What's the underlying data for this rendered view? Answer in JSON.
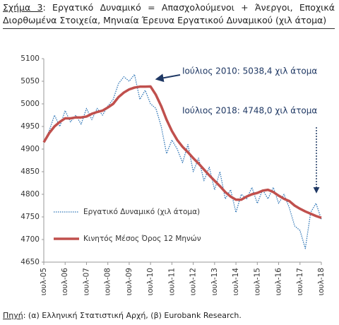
{
  "chart_data": {
    "type": "line",
    "figure_label": "Σχήμα 3",
    "title": ": Εργατικό Δυναμικό = Απασχολούμενοι + Άνεργοι, Εποχικά Διορθωμένα Στοιχεία, Μηνιαία Έρευνα Εργατικού Δυναμικού (χιλ άτομα)",
    "source_label": "Πηγή",
    "source": ": (α) Ελληνική Στατιστική Αρχή, (β) Eurobank Research.",
    "annotations": [
      "Ιούλιος 2010: 5038,4 χιλ άτομα",
      "Ιούλιος 2018: 4748,0 χιλ άτομα"
    ],
    "x": [
      2005.5,
      2005.75,
      2006.0,
      2006.25,
      2006.5,
      2006.75,
      2007.0,
      2007.25,
      2007.5,
      2007.75,
      2008.0,
      2008.25,
      2008.5,
      2008.75,
      2009.0,
      2009.25,
      2009.5,
      2009.75,
      2010.0,
      2010.25,
      2010.5,
      2010.75,
      2011.0,
      2011.25,
      2011.5,
      2011.75,
      2012.0,
      2012.25,
      2012.5,
      2012.75,
      2013.0,
      2013.25,
      2013.5,
      2013.75,
      2014.0,
      2014.25,
      2014.5,
      2014.75,
      2015.0,
      2015.25,
      2015.5,
      2015.75,
      2016.0,
      2016.25,
      2016.5,
      2016.75,
      2017.0,
      2017.25,
      2017.5,
      2017.75,
      2018.0,
      2018.25,
      2018.5
    ],
    "series": [
      {
        "name": "Εργατικό Δυναμικό (χιλ άτομα)",
        "color": "#2e75b6",
        "style": "dotted",
        "values": [
          4915,
          4940,
          4975,
          4950,
          4985,
          4960,
          4975,
          4955,
          4990,
          4965,
          4990,
          4975,
          4995,
          5010,
          5045,
          5060,
          5050,
          5065,
          5010,
          5030,
          5000,
          4990,
          4950,
          4890,
          4920,
          4900,
          4870,
          4910,
          4850,
          4880,
          4830,
          4860,
          4810,
          4850,
          4790,
          4810,
          4760,
          4800,
          4790,
          4815,
          4780,
          4810,
          4790,
          4815,
          4780,
          4800,
          4770,
          4730,
          4720,
          4680,
          4760,
          4780,
          4745
        ]
      },
      {
        "name": "Κινητός Μέσος Όρος 12 Μηνών",
        "color": "#c0504d",
        "style": "solid",
        "values": [
          4915,
          4935,
          4950,
          4960,
          4968,
          4968,
          4970,
          4970,
          4972,
          4978,
          4982,
          4985,
          4992,
          5000,
          5015,
          5025,
          5032,
          5036,
          5038,
          5038,
          5038.4,
          5020,
          4995,
          4965,
          4940,
          4920,
          4905,
          4893,
          4880,
          4868,
          4855,
          4842,
          4830,
          4818,
          4805,
          4795,
          4788,
          4788,
          4795,
          4800,
          4803,
          4808,
          4810,
          4805,
          4797,
          4790,
          4785,
          4775,
          4768,
          4762,
          4757,
          4752,
          4748.0
        ]
      }
    ],
    "xlim": [
      2005.5,
      2018.5
    ],
    "xticks": [
      {
        "value": 2005.5,
        "label": "ιουλ-05"
      },
      {
        "value": 2006.5,
        "label": "ιουλ-06"
      },
      {
        "value": 2007.5,
        "label": "ιουλ-07"
      },
      {
        "value": 2008.5,
        "label": "ιουλ-08"
      },
      {
        "value": 2009.5,
        "label": "ιουλ-09"
      },
      {
        "value": 2010.5,
        "label": "ιουλ-10"
      },
      {
        "value": 2011.5,
        "label": "ιουλ-11"
      },
      {
        "value": 2012.5,
        "label": "ιουλ-12"
      },
      {
        "value": 2013.5,
        "label": "ιουλ-13"
      },
      {
        "value": 2014.5,
        "label": "ιουλ-14"
      },
      {
        "value": 2015.5,
        "label": "ιουλ-15"
      },
      {
        "value": 2016.5,
        "label": "ιουλ-16"
      },
      {
        "value": 2017.5,
        "label": "ιουλ-17"
      },
      {
        "value": 2018.5,
        "label": "ιουλ-18"
      }
    ],
    "ylim": [
      4650,
      5100
    ],
    "yticks": [
      4650,
      4700,
      4750,
      4800,
      4850,
      4900,
      4950,
      5000,
      5050,
      5100
    ],
    "grid": false,
    "legend": "lower-left"
  }
}
